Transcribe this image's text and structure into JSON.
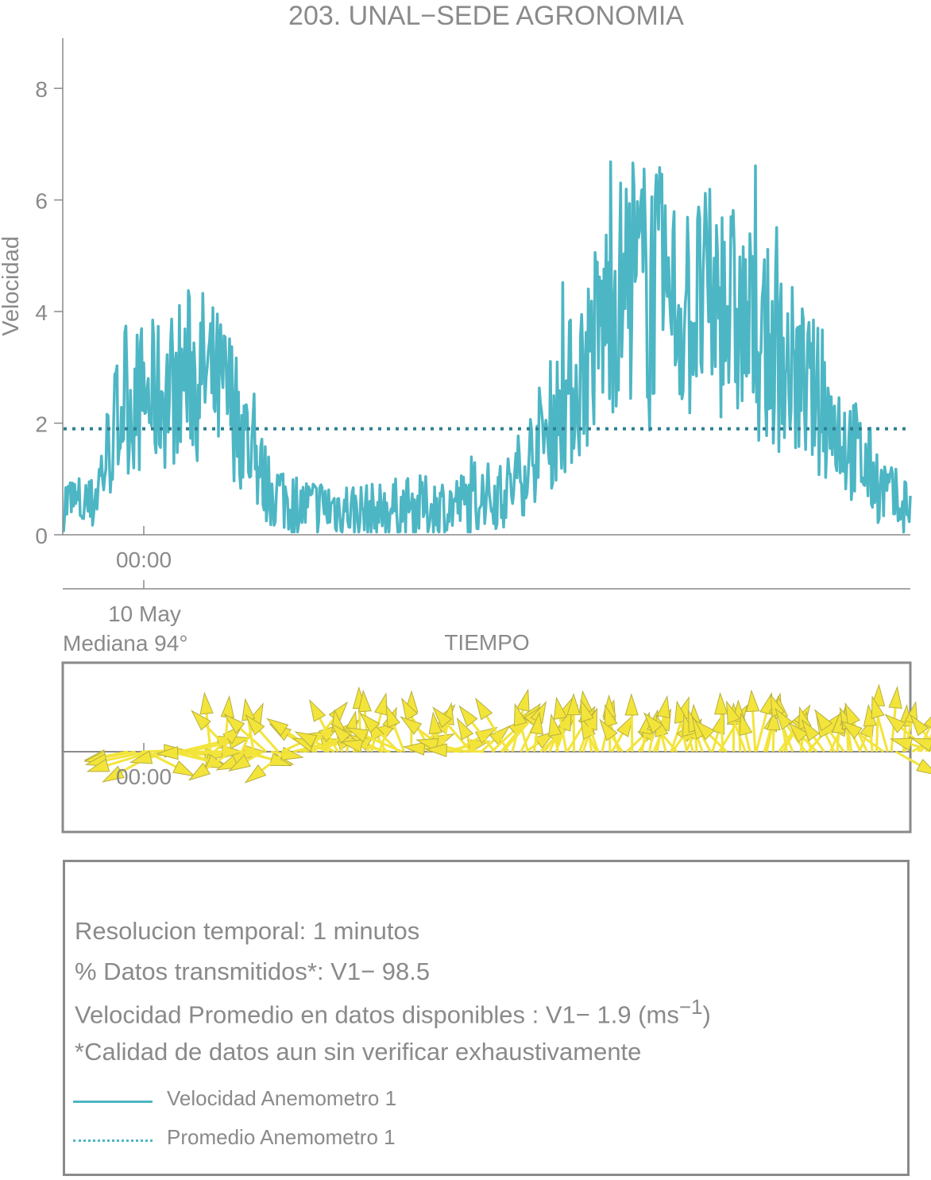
{
  "title": "203. UNAL−SEDE AGRONOMIA",
  "colors": {
    "speed_line": "#4db6c4",
    "mean_line": "#2e7e92",
    "arrows_fill": "#f3e43a",
    "arrows_stroke": "#b8b040",
    "axis": "#8a8a8a",
    "text": "#8a8a8a"
  },
  "chart_data": [
    {
      "type": "line",
      "title": "203. UNAL−SEDE AGRONOMIA",
      "ylabel": "Velocidad",
      "xlabel": "TIEMPO",
      "ylim": [
        0,
        8.9
      ],
      "yticks": [
        0,
        2,
        4,
        6,
        8
      ],
      "x_tick_labels": [
        "00:00"
      ],
      "x_date_label": "10 May",
      "grid": false,
      "series": [
        {
          "name": "Velocidad Anemometro 1",
          "style": "solid",
          "profile_hours": [
            0,
            1,
            2,
            3,
            4,
            5,
            6,
            7,
            8,
            9,
            10,
            11,
            12,
            13,
            14,
            15,
            16,
            17,
            18,
            19,
            20,
            21,
            22,
            23,
            24
          ],
          "profile_values": [
            2.4,
            2.5,
            3.0,
            2.4,
            0.9,
            0.5,
            0.5,
            0.4,
            0.5,
            0.5,
            0.6,
            0.8,
            1.8,
            2.8,
            4.3,
            4.6,
            4.0,
            4.2,
            3.6,
            3.0,
            2.3,
            1.4,
            0.6,
            0.5,
            2.6
          ],
          "peak_max": 6.9
        },
        {
          "name": "Promedio Anemometro 1",
          "style": "dotted",
          "value": 1.9
        }
      ]
    },
    {
      "type": "vector",
      "title": "Mediana 94°",
      "x_tick_labels": [
        "00:00"
      ],
      "sectors": [
        {
          "from_h": 0,
          "to_h": 2.3,
          "dir_deg": 185,
          "spread": 25,
          "len": 0.9
        },
        {
          "from_h": 2.3,
          "to_h": 5.0,
          "dir_deg": 120,
          "spread": 95,
          "len": 0.75
        },
        {
          "from_h": 5.0,
          "to_h": 11.5,
          "dir_deg": 95,
          "spread": 85,
          "len": 0.8
        },
        {
          "from_h": 11.5,
          "to_h": 21.5,
          "dir_deg": 80,
          "spread": 40,
          "len": 0.75
        },
        {
          "from_h": 21.5,
          "to_h": 24.0,
          "dir_deg": 140,
          "spread": 70,
          "len": 0.85
        }
      ]
    }
  ],
  "info": {
    "resolution": "Resolucion temporal: 1 minutos",
    "transmitted": "% Datos transmitidos*: V1− 98.5",
    "mean_speed_prefix": "Velocidad Promedio en datos disponibles : V1−  1.9 (ms",
    "mean_speed_exponent": "−1",
    "mean_speed_suffix": ")",
    "quality_note": "*Calidad de datos aun sin verificar exhaustivamente"
  },
  "legend": [
    {
      "label": "Velocidad Anemometro 1",
      "style": "solid"
    },
    {
      "label": "Promedio Anemometro 1",
      "style": "dotted"
    }
  ]
}
